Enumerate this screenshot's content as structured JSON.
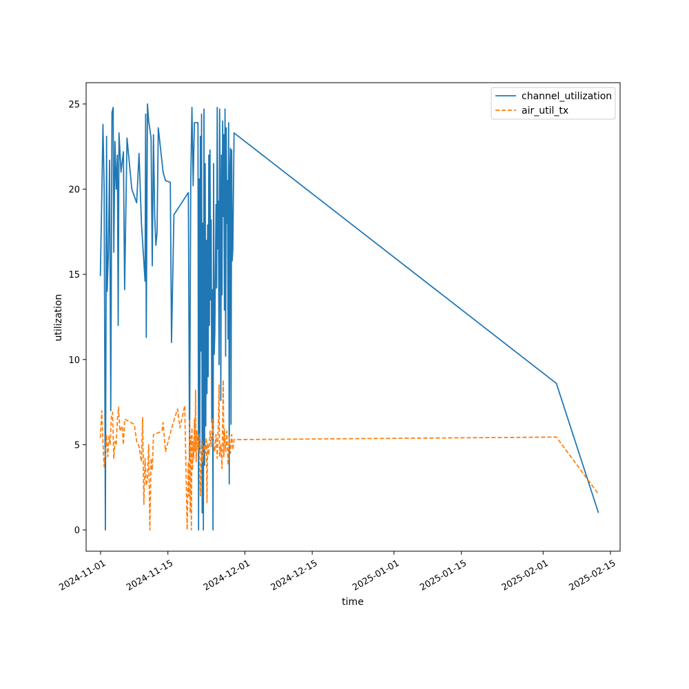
{
  "chart_data": {
    "type": "line",
    "xlabel": "time",
    "ylabel": "utilization",
    "x_is_date": true,
    "xlim": [
      "2024-10-29",
      "2025-02-17"
    ],
    "ylim": [
      -1.25,
      26.25
    ],
    "x_ticks": [
      "2024-11-01",
      "2024-11-15",
      "2024-12-01",
      "2024-12-15",
      "2025-01-01",
      "2025-01-15",
      "2025-02-01",
      "2025-02-15"
    ],
    "y_ticks": [
      0,
      5,
      10,
      15,
      20,
      25
    ],
    "grid": false,
    "legend_position": "top-right",
    "series": [
      {
        "name": "channel_utilization",
        "color": "#1f77b4",
        "style": "solid",
        "points": [
          [
            "2024-10-31T23:00",
            14.9
          ],
          [
            "2024-11-01T06:00",
            19.5
          ],
          [
            "2024-11-01T12:00",
            23.8
          ],
          [
            "2024-11-01T18:00",
            20.0
          ],
          [
            "2024-11-02T00:00",
            0.0
          ],
          [
            "2024-11-02T06:00",
            23.1
          ],
          [
            "2024-11-02T09:00",
            14.0
          ],
          [
            "2024-11-02T15:00",
            16.2
          ],
          [
            "2024-11-02T21:00",
            21.7
          ],
          [
            "2024-11-03T03:00",
            7.0
          ],
          [
            "2024-11-03T09:00",
            24.5
          ],
          [
            "2024-11-03T15:00",
            24.8
          ],
          [
            "2024-11-03T18:00",
            16.3
          ],
          [
            "2024-11-04T00:00",
            22.8
          ],
          [
            "2024-11-04T06:00",
            20.0
          ],
          [
            "2024-11-04T12:00",
            22.0
          ],
          [
            "2024-11-04T16:00",
            12.0
          ],
          [
            "2024-11-04T20:00",
            23.3
          ],
          [
            "2024-11-05T06:00",
            21.0
          ],
          [
            "2024-11-05T18:00",
            22.2
          ],
          [
            "2024-11-06T00:00",
            14.1
          ],
          [
            "2024-11-06T12:00",
            23.0
          ],
          [
            "2024-11-07T12:00",
            20.0
          ],
          [
            "2024-11-08T12:00",
            19.2
          ],
          [
            "2024-11-09T00:00",
            22.1
          ],
          [
            "2024-11-09T12:00",
            18.0
          ],
          [
            "2024-11-10T06:00",
            14.6
          ],
          [
            "2024-11-10T09:00",
            24.4
          ],
          [
            "2024-11-10T12:00",
            11.3
          ],
          [
            "2024-11-10T18:00",
            25.0
          ],
          [
            "2024-11-11T00:00",
            24.0
          ],
          [
            "2024-11-11T12:00",
            23.0
          ],
          [
            "2024-11-11T18:00",
            15.5
          ],
          [
            "2024-11-12T00:00",
            23.2
          ],
          [
            "2024-11-12T06:00",
            18.5
          ],
          [
            "2024-11-12T12:00",
            16.7
          ],
          [
            "2024-11-12T18:00",
            17.5
          ],
          [
            "2024-11-13T00:00",
            23.6
          ],
          [
            "2024-11-14T00:00",
            21.0
          ],
          [
            "2024-11-14T12:00",
            20.5
          ],
          [
            "2024-11-15T12:00",
            20.4
          ],
          [
            "2024-11-15T18:00",
            11.0
          ],
          [
            "2024-11-16T06:00",
            18.5
          ],
          [
            "2024-11-19T06:00",
            19.8
          ],
          [
            "2024-11-19T12:00",
            4.3
          ],
          [
            "2024-11-19T18:00",
            20.5
          ],
          [
            "2024-11-20T00:00",
            24.8
          ],
          [
            "2024-11-20T06:00",
            20.2
          ],
          [
            "2024-11-20T12:00",
            23.9
          ],
          [
            "2024-11-21T06:00",
            23.9
          ],
          [
            "2024-11-21T09:00",
            0.0
          ],
          [
            "2024-11-21T12:00",
            20.6
          ],
          [
            "2024-11-21T15:00",
            4.5
          ],
          [
            "2024-11-21T18:00",
            23.1
          ],
          [
            "2024-11-21T21:00",
            10.5
          ],
          [
            "2024-11-22T00:00",
            24.4
          ],
          [
            "2024-11-22T03:00",
            1.0
          ],
          [
            "2024-11-22T06:00",
            18.0
          ],
          [
            "2024-11-22T09:00",
            0.0
          ],
          [
            "2024-11-22T12:00",
            24.7
          ],
          [
            "2024-11-22T15:00",
            3.8
          ],
          [
            "2024-11-22T18:00",
            21.5
          ],
          [
            "2024-11-22T21:00",
            6.1
          ],
          [
            "2024-11-23T00:00",
            17.0
          ],
          [
            "2024-11-23T03:00",
            8.0
          ],
          [
            "2024-11-23T06:00",
            17.9
          ],
          [
            "2024-11-23T09:00",
            9.0
          ],
          [
            "2024-11-23T12:00",
            22.0
          ],
          [
            "2024-11-23T15:00",
            12.0
          ],
          [
            "2024-11-23T18:00",
            22.3
          ],
          [
            "2024-11-23T21:00",
            13.5
          ],
          [
            "2024-11-24T00:00",
            18.2
          ],
          [
            "2024-11-24T03:00",
            6.3
          ],
          [
            "2024-11-24T06:00",
            14.1
          ],
          [
            "2024-11-24T09:00",
            0.0
          ],
          [
            "2024-11-24T12:00",
            21.5
          ],
          [
            "2024-11-24T15:00",
            10.3
          ],
          [
            "2024-11-24T18:00",
            11.5
          ],
          [
            "2024-11-25T00:00",
            19.1
          ],
          [
            "2024-11-25T03:00",
            14.2
          ],
          [
            "2024-11-25T06:00",
            24.8
          ],
          [
            "2024-11-25T09:00",
            16.5
          ],
          [
            "2024-11-25T12:00",
            19.3
          ],
          [
            "2024-11-25T15:00",
            9.7
          ],
          [
            "2024-11-25T18:00",
            24.7
          ],
          [
            "2024-11-25T21:00",
            19.5
          ],
          [
            "2024-11-26T00:00",
            7.6
          ],
          [
            "2024-11-26T03:00",
            22.0
          ],
          [
            "2024-11-26T06:00",
            13.8
          ],
          [
            "2024-11-26T09:00",
            24.0
          ],
          [
            "2024-11-26T12:00",
            18.4
          ],
          [
            "2024-11-26T15:00",
            23.2
          ],
          [
            "2024-11-26T18:00",
            12.9
          ],
          [
            "2024-11-26T21:00",
            24.7
          ],
          [
            "2024-11-27T00:00",
            10.2
          ],
          [
            "2024-11-27T03:00",
            23.6
          ],
          [
            "2024-11-27T06:00",
            18.0
          ],
          [
            "2024-11-27T09:00",
            20.5
          ],
          [
            "2024-11-27T12:00",
            11.2
          ],
          [
            "2024-11-27T15:00",
            23.9
          ],
          [
            "2024-11-27T18:00",
            2.7
          ],
          [
            "2024-11-27T21:00",
            21.0
          ],
          [
            "2024-11-28T00:00",
            22.4
          ],
          [
            "2024-11-28T03:00",
            6.2
          ],
          [
            "2024-11-28T06:00",
            22.3
          ],
          [
            "2024-11-28T09:00",
            15.8
          ],
          [
            "2024-11-28T12:00",
            16.5
          ],
          [
            "2024-11-28T18:00",
            23.3
          ],
          [
            "2025-02-03T18:00",
            8.6
          ],
          [
            "2025-02-12T12:00",
            1.0
          ]
        ]
      },
      {
        "name": "air_util_tx",
        "color": "#ff7f0e",
        "style": "dashed",
        "points": [
          [
            "2024-10-31T23:00",
            5.4
          ],
          [
            "2024-11-01T06:00",
            7.0
          ],
          [
            "2024-11-01T12:00",
            5.1
          ],
          [
            "2024-11-01T18:00",
            3.7
          ],
          [
            "2024-11-02T00:00",
            4.5
          ],
          [
            "2024-11-02T06:00",
            5.6
          ],
          [
            "2024-11-02T12:00",
            4.3
          ],
          [
            "2024-11-02T18:00",
            5.5
          ],
          [
            "2024-11-03T00:00",
            5.0
          ],
          [
            "2024-11-03T06:00",
            6.7
          ],
          [
            "2024-11-03T12:00",
            6.9
          ],
          [
            "2024-11-03T18:00",
            4.2
          ],
          [
            "2024-11-04T00:00",
            5.2
          ],
          [
            "2024-11-04T06:00",
            5.0
          ],
          [
            "2024-11-04T12:00",
            6.5
          ],
          [
            "2024-11-04T18:00",
            7.2
          ],
          [
            "2024-11-05T00:00",
            5.8
          ],
          [
            "2024-11-05T12:00",
            6.1
          ],
          [
            "2024-11-05T18:00",
            5.0
          ],
          [
            "2024-11-06T00:00",
            6.5
          ],
          [
            "2024-11-08T00:00",
            6.2
          ],
          [
            "2024-11-08T12:00",
            5.2
          ],
          [
            "2024-11-09T00:00",
            4.9
          ],
          [
            "2024-11-09T12:00",
            4.0
          ],
          [
            "2024-11-09T18:00",
            6.6
          ],
          [
            "2024-11-10T00:00",
            1.5
          ],
          [
            "2024-11-10T06:00",
            4.2
          ],
          [
            "2024-11-10T12:00",
            2.6
          ],
          [
            "2024-11-10T18:00",
            3.0
          ],
          [
            "2024-11-11T00:00",
            5.0
          ],
          [
            "2024-11-11T06:00",
            0.0
          ],
          [
            "2024-11-11T12:00",
            4.2
          ],
          [
            "2024-11-11T18:00",
            3.5
          ],
          [
            "2024-11-12T00:00",
            5.6
          ],
          [
            "2024-11-13T00:00",
            5.7
          ],
          [
            "2024-11-13T18:00",
            5.8
          ],
          [
            "2024-11-14T00:00",
            6.3
          ],
          [
            "2024-11-14T12:00",
            4.6
          ],
          [
            "2024-11-16T00:00",
            6.2
          ],
          [
            "2024-11-17T00:00",
            7.1
          ],
          [
            "2024-11-17T12:00",
            6.0
          ],
          [
            "2024-11-18T12:00",
            7.3
          ],
          [
            "2024-11-19T00:00",
            0.0
          ],
          [
            "2024-11-19T06:00",
            4.0
          ],
          [
            "2024-11-19T09:00",
            2.0
          ],
          [
            "2024-11-19T12:00",
            6.5
          ],
          [
            "2024-11-19T15:00",
            1.0
          ],
          [
            "2024-11-19T18:00",
            5.5
          ],
          [
            "2024-11-19T21:00",
            0.0
          ],
          [
            "2024-11-20T00:00",
            6.0
          ],
          [
            "2024-11-20T03:00",
            3.5
          ],
          [
            "2024-11-20T06:00",
            5.2
          ],
          [
            "2024-11-20T09:00",
            4.2
          ],
          [
            "2024-11-20T12:00",
            6.5
          ],
          [
            "2024-11-20T15:00",
            4.6
          ],
          [
            "2024-11-20T18:00",
            8.2
          ],
          [
            "2024-11-20T21:00",
            4.0
          ],
          [
            "2024-11-21T00:00",
            5.8
          ],
          [
            "2024-11-21T06:00",
            4.7
          ],
          [
            "2024-11-21T12:00",
            5.6
          ],
          [
            "2024-11-21T18:00",
            2.0
          ],
          [
            "2024-11-22T00:00",
            5.3
          ],
          [
            "2024-11-22T06:00",
            4.0
          ],
          [
            "2024-11-22T12:00",
            5.0
          ],
          [
            "2024-11-22T18:00",
            4.5
          ],
          [
            "2024-11-23T00:00",
            5.4
          ],
          [
            "2024-11-23T03:00",
            1.6
          ],
          [
            "2024-11-23T06:00",
            5.1
          ],
          [
            "2024-11-23T12:00",
            4.4
          ],
          [
            "2024-11-23T18:00",
            5.8
          ],
          [
            "2024-11-24T00:00",
            4.9
          ],
          [
            "2024-11-24T06:00",
            6.5
          ],
          [
            "2024-11-24T12:00",
            5.0
          ],
          [
            "2024-11-24T18:00",
            4.6
          ],
          [
            "2024-11-25T00:00",
            5.6
          ],
          [
            "2024-11-25T06:00",
            4.2
          ],
          [
            "2024-11-25T12:00",
            6.4
          ],
          [
            "2024-11-25T15:00",
            8.5
          ],
          [
            "2024-11-25T18:00",
            4.3
          ],
          [
            "2024-11-26T00:00",
            5.0
          ],
          [
            "2024-11-26T06:00",
            3.6
          ],
          [
            "2024-11-26T12:00",
            8.8
          ],
          [
            "2024-11-26T15:00",
            4.3
          ],
          [
            "2024-11-26T18:00",
            5.9
          ],
          [
            "2024-11-27T00:00",
            4.6
          ],
          [
            "2024-11-27T06:00",
            5.8
          ],
          [
            "2024-11-27T12:00",
            3.8
          ],
          [
            "2024-11-27T18:00",
            5.5
          ],
          [
            "2024-11-28T00:00",
            4.5
          ],
          [
            "2024-11-28T06:00",
            5.6
          ],
          [
            "2024-11-28T12:00",
            4.7
          ],
          [
            "2024-11-28T18:00",
            5.3
          ],
          [
            "2025-02-03T18:00",
            5.45
          ],
          [
            "2025-02-12T12:00",
            2.1
          ]
        ]
      }
    ]
  }
}
